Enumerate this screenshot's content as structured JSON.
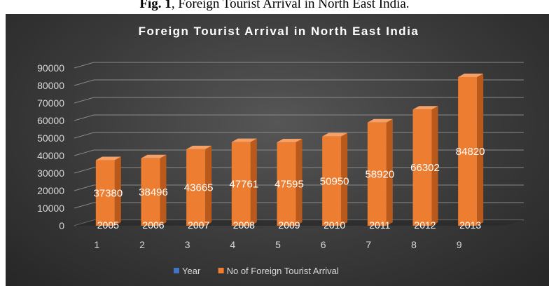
{
  "caption": {
    "label": "Fig. 1",
    "text": ", Foreign Tourist Arrival in North East India."
  },
  "chart_data": {
    "type": "bar",
    "title": "Foreign Tourist Arrival in North East India",
    "categories": [
      "1",
      "2",
      "3",
      "4",
      "5",
      "6",
      "7",
      "8",
      "9"
    ],
    "series": [
      {
        "name": "Year",
        "values": [
          2005,
          2006,
          2007,
          2008,
          2009,
          2010,
          2011,
          2012,
          2013
        ],
        "color": "#4472c4"
      },
      {
        "name": "No of Foreign Tourist Arrival",
        "values": [
          37380,
          38496,
          43665,
          47761,
          47595,
          50950,
          58920,
          66302,
          84820
        ],
        "color": "#ed7d31"
      }
    ],
    "y_ticks": [
      "0",
      "10000",
      "20000",
      "30000",
      "40000",
      "50000",
      "60000",
      "70000",
      "80000",
      "90000"
    ],
    "ylim": [
      0,
      90000
    ],
    "grid": true,
    "legend_position": "bottom",
    "colors": {
      "background": "#3a3a3a",
      "bar": "#ed7d31",
      "bar_side": "#b95a1c",
      "bar_top": "#f4a067",
      "text": "#d9d9d9",
      "title": "#ffffff",
      "gridline": "#8a8a8a"
    }
  }
}
